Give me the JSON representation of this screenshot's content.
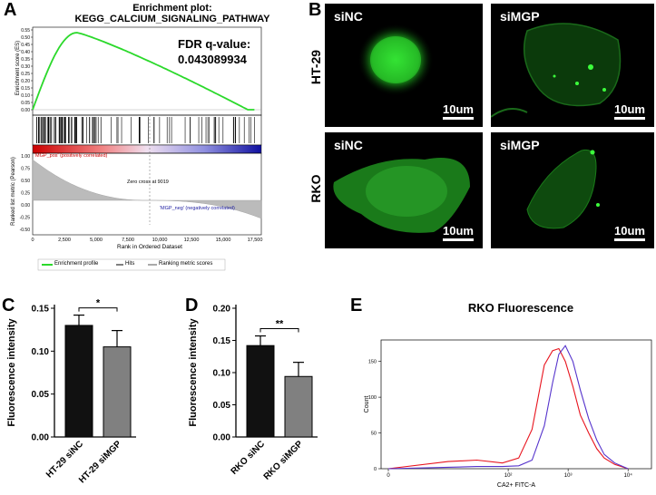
{
  "panel_labels": {
    "a": "A",
    "b": "B",
    "c": "C",
    "d": "D",
    "e": "E"
  },
  "panel_a": {
    "title_line1": "Enrichment plot:",
    "title_line2": "KEGG_CALCIUM_SIGNALING_PATHWAY",
    "fdr_label": "FDR q-value:",
    "fdr_value": "0.043089934",
    "es_axis_label": "Enrichment score (ES)",
    "metric_axis_label": "Ranked list metric (Pearson)",
    "x_axis_label": "Rank in Ordered Dataset",
    "pos_label": "'MGP_pos' (positively correlated)",
    "neg_label": "'MGP_neg' (negatively correlated)",
    "zero_cross": "Zero cross at 9019",
    "legend": [
      "Enrichment profile",
      "Hits",
      "Ranking metric scores"
    ],
    "es_ticks": [
      "0.55",
      "0.50",
      "0.45",
      "0.40",
      "0.35",
      "0.30",
      "0.25",
      "0.20",
      "0.15",
      "0.10",
      "0.05",
      "0.00"
    ],
    "metric_ticks": [
      "1.00",
      "0.75",
      "0.50",
      "0.25",
      "0.00",
      "-0.25",
      "-0.50"
    ],
    "x_ticks": [
      "0",
      "2,500",
      "5,000",
      "7,500",
      "10,000",
      "12,500",
      "15,000",
      "17,500"
    ]
  },
  "panel_b": {
    "row_labels": [
      "HT-29",
      "RKO"
    ],
    "col_labels": [
      "siNC",
      "siMGP"
    ],
    "scale_label": "10um"
  },
  "colors": {
    "green": "#2bd92b",
    "red": "#e8141e",
    "blue": "#3a3aa8",
    "gray": "#808080"
  },
  "chart_data": [
    {
      "type": "bar",
      "title": "",
      "ylabel": "Fluorescence intensity",
      "categories": [
        "HT-29 siNC",
        "HT-29 siMGP"
      ],
      "values": [
        0.13,
        0.105
      ],
      "errors": [
        0.012,
        0.019
      ],
      "colors": [
        "#111111",
        "#808080"
      ],
      "ylim": [
        0,
        0.15
      ],
      "yticks": [
        "0.00",
        "0.05",
        "0.10",
        "0.15"
      ],
      "significance": "*"
    },
    {
      "type": "bar",
      "title": "",
      "ylabel": "Fluorescence intensity",
      "categories": [
        "RKO siNC",
        "RKO siMGP"
      ],
      "values": [
        0.142,
        0.094
      ],
      "errors": [
        0.015,
        0.022
      ],
      "colors": [
        "#111111",
        "#808080"
      ],
      "ylim": [
        0,
        0.2
      ],
      "yticks": [
        "0.00",
        "0.05",
        "0.10",
        "0.15",
        "0.20"
      ],
      "significance": "**"
    },
    {
      "type": "line",
      "title": "RKO Fluorescence",
      "xlabel": "CA2+ FITC-A",
      "ylabel": "Count",
      "x_scale": "log",
      "xticks": [
        "0",
        "10²",
        "10³",
        "10⁴"
      ],
      "yticks": [
        "0",
        "50",
        "100",
        "150"
      ],
      "ylim": [
        0,
        180
      ],
      "series": [
        {
          "color": "#e8141e",
          "x": [
            0,
            10,
            30,
            80,
            150,
            250,
            400,
            550,
            700,
            900,
            1200,
            1600,
            2200,
            3000,
            4000,
            6000,
            10000
          ],
          "y": [
            0,
            10,
            12,
            8,
            15,
            55,
            145,
            165,
            168,
            150,
            115,
            75,
            50,
            28,
            15,
            6,
            0
          ]
        },
        {
          "color": "#5533cc",
          "x": [
            0,
            10,
            30,
            80,
            150,
            250,
            400,
            550,
            700,
            900,
            1200,
            1600,
            2200,
            3000,
            4000,
            6000,
            10000
          ],
          "y": [
            0,
            2,
            3,
            3,
            4,
            12,
            60,
            120,
            160,
            172,
            150,
            110,
            70,
            40,
            20,
            8,
            0
          ]
        }
      ]
    }
  ]
}
